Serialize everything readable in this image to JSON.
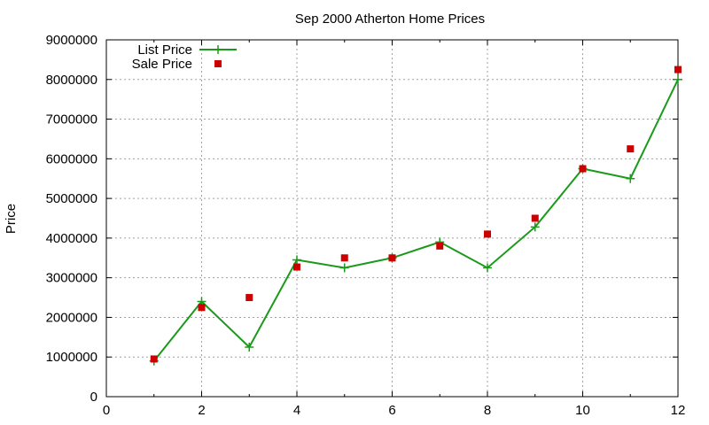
{
  "chart_data": {
    "type": "line",
    "title": "Sep 2000 Atherton Home Prices",
    "xlabel": "",
    "ylabel": "Price",
    "xlim": [
      0,
      12
    ],
    "ylim": [
      0,
      9000000
    ],
    "xticks": [
      0,
      2,
      4,
      6,
      8,
      10,
      12
    ],
    "yticks": [
      0,
      1000000,
      2000000,
      3000000,
      4000000,
      5000000,
      6000000,
      7000000,
      8000000,
      9000000
    ],
    "grid": true,
    "legend": "top-left",
    "series": [
      {
        "name": "List Price",
        "style": "line-plus",
        "color": "#1a9a1a",
        "x": [
          1,
          2,
          3,
          4,
          5,
          6,
          7,
          8,
          9,
          10,
          11,
          12
        ],
        "values": [
          900000,
          2400000,
          1250000,
          3450000,
          3250000,
          3500000,
          3900000,
          3250000,
          4280000,
          5750000,
          5500000,
          8000000
        ]
      },
      {
        "name": "Sale Price",
        "style": "square-points",
        "color": "#cc0000",
        "x": [
          1,
          2,
          3,
          4,
          5,
          6,
          7,
          8,
          9,
          10,
          11,
          12
        ],
        "values": [
          950000,
          2250000,
          2500000,
          3270000,
          3500000,
          3500000,
          3800000,
          4100000,
          4500000,
          5750000,
          6250000,
          8250000
        ]
      }
    ]
  }
}
